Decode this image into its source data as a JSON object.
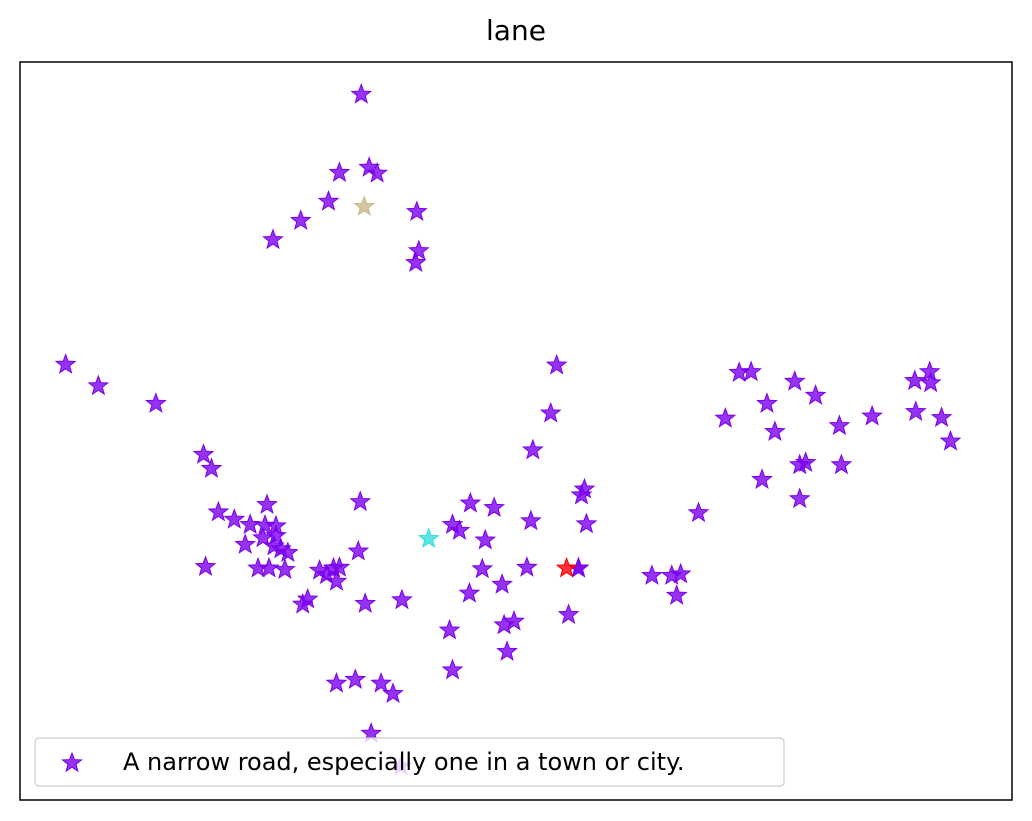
{
  "chart_data": {
    "type": "scatter",
    "title": "lane",
    "xlabel": "",
    "ylabel": "",
    "xlim": [
      0,
      100
    ],
    "ylim": [
      0,
      100
    ],
    "grid": false,
    "axis_ticks": false,
    "marker": "star",
    "legend": {
      "placement": "lower-left",
      "entries": [
        "A narrow road, especially one in a town or city."
      ]
    },
    "colors": {
      "main": "#7a00ee",
      "highlight_red": "#ff0000",
      "highlight_cyan": "#33dde0",
      "highlight_tan": "#c8b88a"
    },
    "series": [
      {
        "name": "A narrow road, especially one in a town or city.",
        "color": "#7a00ee",
        "points": [
          [
            34.4,
            95.6
          ],
          [
            32.2,
            85.0
          ],
          [
            35.2,
            85.7
          ],
          [
            36.0,
            84.9
          ],
          [
            31.1,
            81.1
          ],
          [
            28.3,
            78.5
          ],
          [
            25.5,
            75.9
          ],
          [
            40.0,
            79.7
          ],
          [
            40.2,
            74.4
          ],
          [
            39.9,
            72.8
          ],
          [
            4.6,
            59.0
          ],
          [
            7.9,
            56.1
          ],
          [
            13.7,
            53.7
          ],
          [
            18.5,
            46.8
          ],
          [
            19.3,
            44.9
          ],
          [
            24.9,
            40.0
          ],
          [
            34.3,
            40.4
          ],
          [
            20.0,
            39.0
          ],
          [
            21.6,
            38.0
          ],
          [
            23.2,
            37.3
          ],
          [
            24.7,
            37.2
          ],
          [
            25.8,
            37.1
          ],
          [
            24.5,
            35.5
          ],
          [
            25.8,
            35.8
          ],
          [
            22.7,
            34.6
          ],
          [
            25.6,
            34.4
          ],
          [
            26.3,
            34.0
          ],
          [
            27.0,
            33.5
          ],
          [
            18.7,
            31.6
          ],
          [
            24.0,
            31.4
          ],
          [
            25.1,
            31.4
          ],
          [
            26.7,
            31.2
          ],
          [
            30.2,
            31.1
          ],
          [
            30.9,
            30.5
          ],
          [
            31.6,
            31.4
          ],
          [
            32.2,
            31.5
          ],
          [
            34.1,
            33.7
          ],
          [
            31.9,
            29.6
          ],
          [
            28.5,
            26.5
          ],
          [
            29.0,
            27.2
          ],
          [
            34.8,
            26.6
          ],
          [
            38.5,
            27.1
          ],
          [
            45.4,
            40.2
          ],
          [
            47.8,
            39.6
          ],
          [
            43.6,
            37.3
          ],
          [
            44.3,
            36.5
          ],
          [
            46.9,
            35.2
          ],
          [
            51.5,
            37.8
          ],
          [
            57.1,
            37.4
          ],
          [
            56.9,
            42.1
          ],
          [
            56.6,
            41.3
          ],
          [
            54.1,
            58.9
          ],
          [
            53.5,
            52.4
          ],
          [
            51.7,
            47.4
          ],
          [
            46.6,
            31.3
          ],
          [
            51.1,
            31.5
          ],
          [
            56.3,
            31.4
          ],
          [
            48.6,
            29.2
          ],
          [
            45.3,
            28.0
          ],
          [
            55.3,
            25.1
          ],
          [
            48.8,
            23.7
          ],
          [
            49.8,
            24.2
          ],
          [
            43.3,
            23.0
          ],
          [
            49.1,
            20.1
          ],
          [
            43.6,
            17.6
          ],
          [
            31.9,
            15.8
          ],
          [
            33.8,
            16.3
          ],
          [
            36.4,
            15.8
          ],
          [
            37.6,
            14.4
          ],
          [
            35.4,
            9.0
          ],
          [
            38.4,
            4.6
          ],
          [
            63.7,
            30.4
          ],
          [
            65.7,
            30.4
          ],
          [
            66.6,
            30.6
          ],
          [
            66.2,
            27.7
          ],
          [
            68.4,
            38.9
          ],
          [
            72.5,
            57.9
          ],
          [
            73.7,
            58.0
          ],
          [
            71.1,
            51.7
          ],
          [
            75.3,
            53.7
          ],
          [
            78.1,
            56.7
          ],
          [
            80.2,
            54.8
          ],
          [
            76.1,
            49.9
          ],
          [
            82.6,
            50.7
          ],
          [
            85.9,
            52.0
          ],
          [
            78.6,
            45.4
          ],
          [
            79.2,
            45.7
          ],
          [
            82.8,
            45.4
          ],
          [
            74.8,
            43.4
          ],
          [
            78.6,
            40.8
          ],
          [
            90.2,
            56.8
          ],
          [
            91.7,
            58.0
          ],
          [
            91.8,
            56.5
          ],
          [
            90.3,
            52.6
          ],
          [
            92.9,
            51.8
          ],
          [
            93.8,
            48.6
          ],
          [
            56.3,
            31.4
          ]
        ]
      },
      {
        "name": "",
        "color": "#ff0000",
        "points": [
          [
            55.1,
            31.4
          ]
        ]
      },
      {
        "name": "",
        "color": "#33dde0",
        "points": [
          [
            41.2,
            35.4
          ]
        ]
      },
      {
        "name": "",
        "color": "#c8b88a",
        "points": [
          [
            34.7,
            80.4
          ]
        ]
      }
    ]
  }
}
